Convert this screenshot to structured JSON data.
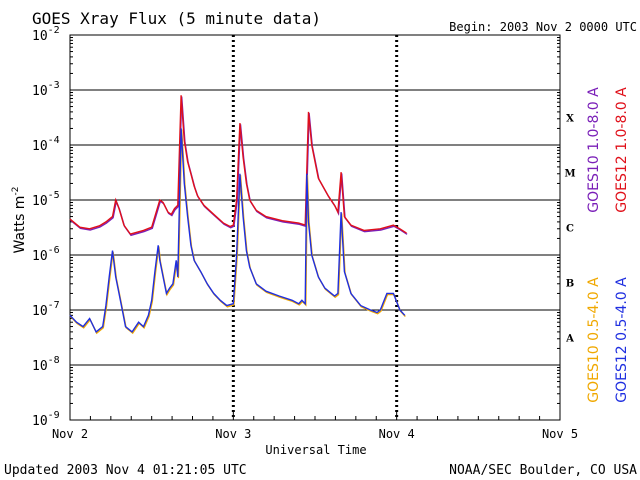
{
  "chart_data": {
    "type": "line",
    "title": "GOES Xray Flux (5 minute data)",
    "begin_label": "Begin:  2003 Nov 2 0000 UTC",
    "xlabel": "Universal Time",
    "ylabel": "Watts m",
    "ylabel_sup": "-2",
    "footer_left": "Updated 2003 Nov  4 01:21:05 UTC",
    "footer_right": "NOAA/SEC Boulder, CO USA",
    "x_unit": "days since 2003 Nov 2 0000 UTC",
    "xlim": [
      0,
      3
    ],
    "x_ticks": [
      {
        "value": 0,
        "label": "Nov 2"
      },
      {
        "value": 1,
        "label": "Nov 3"
      },
      {
        "value": 2,
        "label": "Nov 4"
      },
      {
        "value": 3,
        "label": "Nov 5"
      }
    ],
    "y_scale": "log",
    "ylim_exponent": [
      -9,
      -2
    ],
    "y_ticks": [
      {
        "exp": -2,
        "label": "10",
        "sup": "-2"
      },
      {
        "exp": -3,
        "label": "10",
        "sup": "-3"
      },
      {
        "exp": -4,
        "label": "10",
        "sup": "-4"
      },
      {
        "exp": -5,
        "label": "10",
        "sup": "-5"
      },
      {
        "exp": -6,
        "label": "10",
        "sup": "-6"
      },
      {
        "exp": -7,
        "label": "10",
        "sup": "-7"
      },
      {
        "exp": -8,
        "label": "10",
        "sup": "-8"
      },
      {
        "exp": -9,
        "label": "10",
        "sup": "-9"
      }
    ],
    "flare_classes": [
      {
        "label": "X",
        "exp": -3.5
      },
      {
        "label": "M",
        "exp": -4.5
      },
      {
        "label": "C",
        "exp": -5.5
      },
      {
        "label": "B",
        "exp": -6.5
      },
      {
        "label": "A",
        "exp": -7.5
      }
    ],
    "legend": [
      {
        "text": "GOES10 1.0-8.0 A",
        "color": "#7a1fb8"
      },
      {
        "text": "GOES12 1.0-8.0 A",
        "color": "#e0101a"
      },
      {
        "text": "GOES10 0.5-4.0 A",
        "color": "#f0a800"
      },
      {
        "text": "GOES12 0.5-4.0 A",
        "color": "#1f2fe0"
      }
    ],
    "series": [
      {
        "name": "GOES12 1.0-8.0 A",
        "color": "#e0101a",
        "x": [
          0.0,
          0.06,
          0.12,
          0.18,
          0.22,
          0.26,
          0.28,
          0.3,
          0.33,
          0.37,
          0.45,
          0.5,
          0.55,
          0.57,
          0.6,
          0.62,
          0.64,
          0.66,
          0.68,
          0.7,
          0.72,
          0.74,
          0.76,
          0.78,
          0.82,
          0.88,
          0.94,
          0.98,
          1.0,
          1.02,
          1.04,
          1.06,
          1.08,
          1.1,
          1.14,
          1.2,
          1.3,
          1.4,
          1.44,
          1.46,
          1.48,
          1.52,
          1.58,
          1.62,
          1.64,
          1.66,
          1.68,
          1.72,
          1.8,
          1.9,
          1.98,
          2.02,
          2.06
        ],
        "y": [
          4.5e-06,
          3.2e-06,
          3e-06,
          3.4e-06,
          4e-06,
          5e-06,
          1e-05,
          7e-06,
          3.5e-06,
          2.4e-06,
          2.8e-06,
          3.2e-06,
          1e-05,
          9e-06,
          6e-06,
          5.5e-06,
          7e-06,
          8e-06,
          0.0008,
          0.00012,
          5e-05,
          3e-05,
          1.8e-05,
          1.2e-05,
          8e-06,
          5.5e-06,
          3.8e-06,
          3.3e-06,
          3.5e-06,
          1e-05,
          0.00025,
          6e-05,
          2e-05,
          1e-05,
          6.5e-06,
          5e-06,
          4.2e-06,
          3.8e-06,
          3.5e-06,
          0.0004,
          0.0001,
          2.5e-05,
          1.2e-05,
          8e-06,
          6e-06,
          3.2e-05,
          5e-06,
          3.5e-06,
          2.8e-06,
          3e-06,
          3.5e-06,
          3e-06,
          2.5e-06
        ]
      },
      {
        "name": "GOES12 0.5-4.0 A",
        "color": "#1f2fe0",
        "x": [
          0.0,
          0.04,
          0.08,
          0.12,
          0.16,
          0.2,
          0.22,
          0.24,
          0.26,
          0.28,
          0.3,
          0.32,
          0.34,
          0.38,
          0.42,
          0.45,
          0.48,
          0.5,
          0.52,
          0.54,
          0.55,
          0.57,
          0.59,
          0.61,
          0.63,
          0.65,
          0.66,
          0.68,
          0.7,
          0.72,
          0.74,
          0.76,
          0.8,
          0.84,
          0.88,
          0.92,
          0.96,
          1.0,
          1.02,
          1.04,
          1.06,
          1.08,
          1.1,
          1.14,
          1.2,
          1.28,
          1.36,
          1.4,
          1.42,
          1.44,
          1.45,
          1.46,
          1.48,
          1.52,
          1.56,
          1.6,
          1.62,
          1.64,
          1.66,
          1.68,
          1.72,
          1.78,
          1.84,
          1.88,
          1.9,
          1.94,
          1.98,
          2.02,
          2.05
        ],
        "y": [
          8e-08,
          6e-08,
          5e-08,
          7e-08,
          4e-08,
          5e-08,
          1.2e-07,
          4e-07,
          1.2e-06,
          4e-07,
          2e-07,
          1e-07,
          5e-08,
          4e-08,
          6e-08,
          5e-08,
          8e-08,
          1.5e-07,
          5e-07,
          1.5e-06,
          8e-07,
          4e-07,
          2e-07,
          2.5e-07,
          3e-07,
          8e-07,
          4e-07,
          0.0002,
          2e-05,
          5e-06,
          1.5e-06,
          8e-07,
          5e-07,
          3e-07,
          2e-07,
          1.5e-07,
          1.2e-07,
          1.3e-07,
          1e-06,
          3e-05,
          5e-06,
          1.2e-06,
          6e-07,
          3e-07,
          2.2e-07,
          1.8e-07,
          1.5e-07,
          1.3e-07,
          1.5e-07,
          1.3e-07,
          3e-05,
          4e-06,
          1e-06,
          4e-07,
          2.5e-07,
          2e-07,
          1.8e-07,
          2e-07,
          6e-06,
          5e-07,
          2e-07,
          1.2e-07,
          1e-07,
          9e-08,
          1e-07,
          2e-07,
          2e-07,
          1e-07,
          8e-08
        ]
      }
    ]
  }
}
